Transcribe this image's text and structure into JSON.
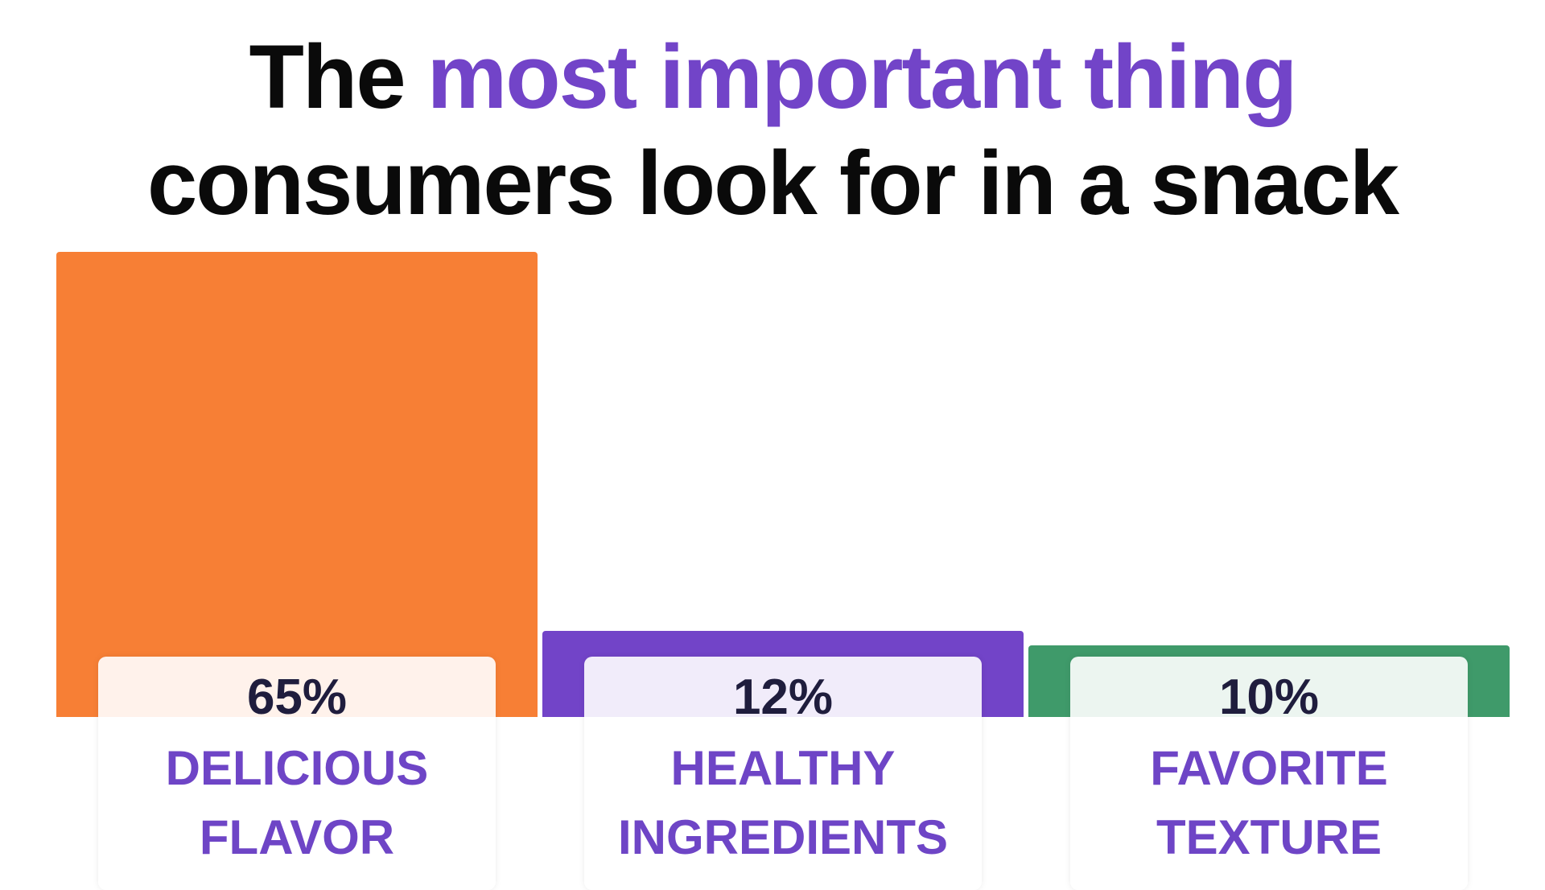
{
  "chart_data": {
    "type": "bar",
    "title": {
      "lead": "The",
      "highlight": "most important thing",
      "rest": "consumers look for in a snack"
    },
    "categories": [
      "DELICIOUS FLAVOR",
      "HEALTHY INGREDIENTS",
      "FAVORITE TEXTURE"
    ],
    "values": [
      65,
      12,
      10
    ],
    "value_labels": [
      "65%",
      "12%",
      "10%"
    ],
    "colors": [
      "#f77f35",
      "#7244c8",
      "#3f9a6a"
    ]
  }
}
